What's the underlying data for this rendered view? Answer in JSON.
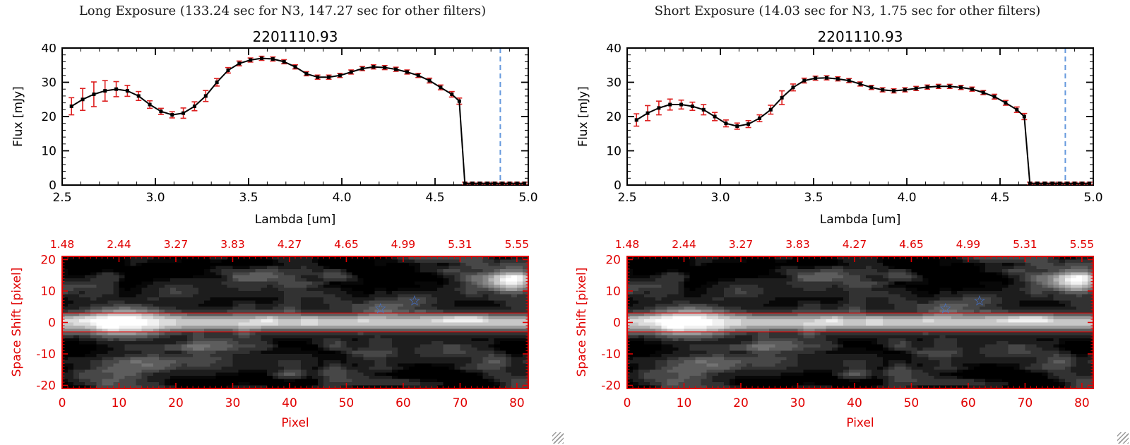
{
  "chart_data": [
    {
      "header": "Long Exposure (133.24 sec for N3, 147.27 sec for other filters)",
      "spectrum": {
        "type": "line",
        "title": "2201110.93",
        "xlabel": "Lambda [um]",
        "ylabel": "Flux [mJy]",
        "xlim": [
          2.5,
          5.0
        ],
        "ylim": [
          0,
          40
        ],
        "xticks": [
          2.5,
          3.0,
          3.5,
          4.0,
          4.5,
          5.0
        ],
        "xtick_labels": [
          "2.5",
          "3.0",
          "3.5",
          "4.0",
          "4.5",
          "5.0"
        ],
        "yticks": [
          0,
          10,
          20,
          30,
          40
        ],
        "line_color": "#000000",
        "errorbar_color": "#dd2020",
        "vline": {
          "x": 4.85,
          "color": "#6699dd",
          "style": "dashed"
        },
        "x": [
          2.55,
          2.61,
          2.67,
          2.73,
          2.79,
          2.85,
          2.91,
          2.97,
          3.03,
          3.09,
          3.15,
          3.21,
          3.27,
          3.33,
          3.39,
          3.45,
          3.51,
          3.57,
          3.63,
          3.69,
          3.75,
          3.81,
          3.87,
          3.93,
          3.99,
          4.05,
          4.11,
          4.17,
          4.23,
          4.29,
          4.35,
          4.41,
          4.47,
          4.53,
          4.59,
          4.63,
          4.66,
          4.7,
          4.74,
          4.78,
          4.82,
          4.86,
          4.9,
          4.94,
          4.98
        ],
        "y": [
          23.0,
          25.0,
          26.5,
          27.5,
          28.0,
          27.5,
          26.0,
          23.5,
          21.5,
          20.5,
          21.0,
          23.0,
          26.0,
          30.0,
          33.5,
          35.5,
          36.5,
          37.0,
          36.8,
          36.0,
          34.5,
          32.5,
          31.5,
          31.5,
          32.0,
          33.0,
          34.0,
          34.5,
          34.3,
          33.8,
          33.0,
          32.0,
          30.5,
          28.5,
          26.5,
          24.5,
          0.5,
          0.5,
          0.5,
          0.5,
          0.5,
          0.5,
          0.5,
          0.5,
          0.5
        ],
        "yerr": [
          2.5,
          3.2,
          3.6,
          3.0,
          2.2,
          1.6,
          1.3,
          1.1,
          0.9,
          0.9,
          1.5,
          1.3,
          1.6,
          1.1,
          0.8,
          0.7,
          0.6,
          0.6,
          0.6,
          0.6,
          0.6,
          0.6,
          0.6,
          0.6,
          0.6,
          0.6,
          0.6,
          0.6,
          0.6,
          0.6,
          0.6,
          0.6,
          0.7,
          0.7,
          0.8,
          0.9,
          0.35,
          0.35,
          0.35,
          0.35,
          0.35,
          0.35,
          0.35,
          0.35,
          0.35
        ]
      },
      "image": {
        "type": "heatmap",
        "xlabel": "Pixel",
        "ylabel": "Space Shift [pixel]",
        "xlim": [
          0,
          82
        ],
        "ylim": [
          -21,
          21
        ],
        "xticks": [
          0,
          10,
          20,
          30,
          40,
          50,
          60,
          70,
          80
        ],
        "yticks": [
          -20,
          -10,
          0,
          10,
          20
        ],
        "top_axis_labels": [
          "1.48",
          "2.44",
          "3.27",
          "3.83",
          "4.27",
          "4.65",
          "4.99",
          "5.31",
          "5.55"
        ],
        "axis_color": "#e10000",
        "aperture_lines_y": [
          3,
          -3
        ],
        "stars": [
          [
            56,
            4.5
          ],
          [
            62,
            7
          ]
        ],
        "star_color": "#4477dd",
        "star_icon": "☆",
        "seed": 3,
        "trace": {
          "y": 0,
          "peak_x": 11,
          "base_amp": 0.72,
          "peak_amp": 0.3
        },
        "blobs": [
          [
            79,
            13,
            3.2,
            2.6,
            0.95
          ],
          [
            20,
            10,
            4,
            2.5,
            0.22
          ],
          [
            33,
            12,
            5,
            2.5,
            0.2
          ],
          [
            45,
            9,
            4,
            2,
            0.16
          ],
          [
            56,
            5,
            3,
            2,
            0.3
          ],
          [
            62,
            7,
            3,
            2,
            0.26
          ],
          [
            12,
            -14,
            5,
            3,
            0.3
          ],
          [
            25,
            -12,
            5,
            3,
            0.28
          ],
          [
            40,
            -13,
            4,
            2.5,
            0.18
          ],
          [
            55,
            -11,
            4,
            2.5,
            0.18
          ],
          [
            66,
            -9,
            4,
            2.5,
            0.22
          ],
          [
            74,
            -13,
            3,
            2,
            0.18
          ],
          [
            5,
            9,
            3,
            2,
            0.18
          ],
          [
            70,
            10,
            3,
            2,
            0.15
          ]
        ]
      }
    },
    {
      "header": "Short Exposure (14.03 sec for N3, 1.75 sec for other filters)",
      "spectrum": {
        "type": "line",
        "title": "2201110.93",
        "xlabel": "Lambda [um]",
        "ylabel": "Flux [mJy]",
        "xlim": [
          2.5,
          5.0
        ],
        "ylim": [
          0,
          40
        ],
        "xticks": [
          2.5,
          3.0,
          3.5,
          4.0,
          4.5,
          5.0
        ],
        "xtick_labels": [
          "2.5",
          "3.0",
          "3.5",
          "4.0",
          "4.5",
          "5.0"
        ],
        "yticks": [
          0,
          10,
          20,
          30,
          40
        ],
        "line_color": "#000000",
        "errorbar_color": "#dd2020",
        "vline": {
          "x": 4.85,
          "color": "#6699dd",
          "style": "dashed"
        },
        "x": [
          2.55,
          2.61,
          2.67,
          2.73,
          2.79,
          2.85,
          2.91,
          2.97,
          3.03,
          3.09,
          3.15,
          3.21,
          3.27,
          3.33,
          3.39,
          3.45,
          3.51,
          3.57,
          3.63,
          3.69,
          3.75,
          3.81,
          3.87,
          3.93,
          3.99,
          4.05,
          4.11,
          4.17,
          4.23,
          4.29,
          4.35,
          4.41,
          4.47,
          4.53,
          4.59,
          4.63,
          4.66,
          4.7,
          4.74,
          4.78,
          4.82,
          4.86,
          4.9,
          4.94,
          4.98
        ],
        "y": [
          19.0,
          21.0,
          22.5,
          23.5,
          23.5,
          23.0,
          22.0,
          20.0,
          18.0,
          17.2,
          17.8,
          19.5,
          22.0,
          25.5,
          28.5,
          30.5,
          31.2,
          31.3,
          31.0,
          30.5,
          29.5,
          28.5,
          27.8,
          27.5,
          27.8,
          28.2,
          28.6,
          28.8,
          28.8,
          28.5,
          28.0,
          27.0,
          25.8,
          24.0,
          22.0,
          20.0,
          0.5,
          0.5,
          0.5,
          0.5,
          0.5,
          0.5,
          0.5,
          0.5,
          0.5
        ],
        "yerr": [
          1.8,
          2.2,
          2.0,
          1.6,
          1.3,
          1.2,
          1.5,
          1.2,
          1.0,
          0.9,
          1.0,
          1.0,
          1.3,
          2.0,
          1.0,
          0.7,
          0.6,
          0.6,
          0.6,
          0.6,
          0.6,
          0.6,
          0.6,
          0.6,
          0.6,
          0.6,
          0.6,
          0.6,
          0.6,
          0.6,
          0.6,
          0.6,
          0.7,
          0.7,
          0.8,
          0.9,
          0.35,
          0.35,
          0.35,
          0.35,
          0.35,
          0.35,
          0.35,
          0.35,
          0.35
        ]
      },
      "image": {
        "type": "heatmap",
        "xlabel": "Pixel",
        "ylabel": "Space Shift [pixel]",
        "xlim": [
          0,
          82
        ],
        "ylim": [
          -21,
          21
        ],
        "xticks": [
          0,
          10,
          20,
          30,
          40,
          50,
          60,
          70,
          80
        ],
        "yticks": [
          -20,
          -10,
          0,
          10,
          20
        ],
        "top_axis_labels": [
          "1.48",
          "2.44",
          "3.27",
          "3.83",
          "4.27",
          "4.65",
          "4.99",
          "5.31",
          "5.55"
        ],
        "axis_color": "#e10000",
        "aperture_lines_y": [
          3,
          -3
        ],
        "stars": [
          [
            56,
            4.5
          ],
          [
            62,
            7
          ]
        ],
        "star_color": "#4477dd",
        "star_icon": "☆",
        "seed": 3,
        "trace": {
          "y": 0,
          "peak_x": 11,
          "base_amp": 0.72,
          "peak_amp": 0.3
        },
        "blobs": [
          [
            79,
            13,
            3.2,
            2.6,
            0.95
          ],
          [
            20,
            10,
            4,
            2.5,
            0.22
          ],
          [
            33,
            12,
            5,
            2.5,
            0.2
          ],
          [
            45,
            9,
            4,
            2,
            0.16
          ],
          [
            56,
            5,
            3,
            2,
            0.3
          ],
          [
            62,
            7,
            3,
            2,
            0.26
          ],
          [
            12,
            -14,
            5,
            3,
            0.3
          ],
          [
            25,
            -12,
            5,
            3,
            0.28
          ],
          [
            40,
            -13,
            4,
            2.5,
            0.18
          ],
          [
            55,
            -11,
            4,
            2.5,
            0.18
          ],
          [
            66,
            -9,
            4,
            2.5,
            0.22
          ],
          [
            74,
            -13,
            3,
            2,
            0.18
          ],
          [
            5,
            9,
            3,
            2,
            0.18
          ],
          [
            70,
            10,
            3,
            2,
            0.15
          ]
        ]
      }
    }
  ]
}
